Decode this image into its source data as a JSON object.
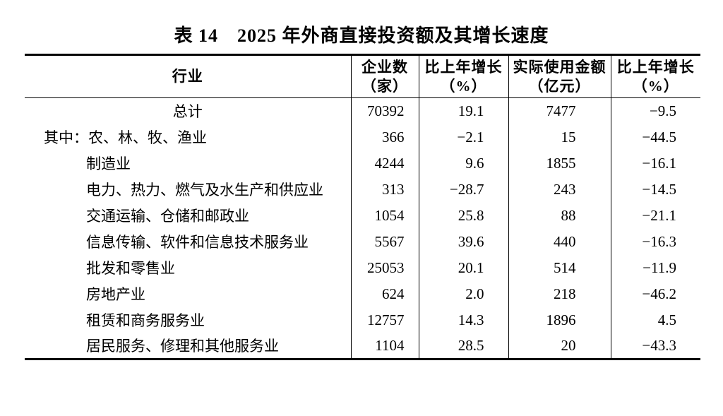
{
  "page": {
    "background": "#ffffff",
    "text_color": "#000000"
  },
  "title": "表 14　2025 年外商直接投资额及其增长速度",
  "table": {
    "columns": [
      {
        "label": "行业",
        "sub": ""
      },
      {
        "label": "企业数",
        "sub": "（家）"
      },
      {
        "label": "比上年增长",
        "sub": "（%）"
      },
      {
        "label": "实际使用金额",
        "sub": "（亿元）"
      },
      {
        "label": "比上年增长",
        "sub": "（%）"
      }
    ],
    "rows": [
      {
        "industry": "总计",
        "enterprises": "70392",
        "enterprises_growth": "19.1",
        "amount_used": "7477",
        "amount_growth": "−9.5"
      },
      {
        "industry": "其中：农、林、牧、渔业",
        "enterprises": "366",
        "enterprises_growth": "−2.1",
        "amount_used": "15",
        "amount_growth": "−44.5"
      },
      {
        "industry": "制造业",
        "enterprises": "4244",
        "enterprises_growth": "9.6",
        "amount_used": "1855",
        "amount_growth": "−16.1"
      },
      {
        "industry": "电力、热力、燃气及水生产和供应业",
        "enterprises": "313",
        "enterprises_growth": "−28.7",
        "amount_used": "243",
        "amount_growth": "−14.5"
      },
      {
        "industry": "交通运输、仓储和邮政业",
        "enterprises": "1054",
        "enterprises_growth": "25.8",
        "amount_used": "88",
        "amount_growth": "−21.1"
      },
      {
        "industry": "信息传输、软件和信息技术服务业",
        "enterprises": "5567",
        "enterprises_growth": "39.6",
        "amount_used": "440",
        "amount_growth": "−16.3"
      },
      {
        "industry": "批发和零售业",
        "enterprises": "25053",
        "enterprises_growth": "20.1",
        "amount_used": "514",
        "amount_growth": "−11.9"
      },
      {
        "industry": "房地产业",
        "enterprises": "624",
        "enterprises_growth": "2.0",
        "amount_used": "218",
        "amount_growth": "−46.2"
      },
      {
        "industry": "租赁和商务服务业",
        "enterprises": "12757",
        "enterprises_growth": "14.3",
        "amount_used": "1896",
        "amount_growth": "4.5"
      },
      {
        "industry": "居民服务、修理和其他服务业",
        "enterprises": "1104",
        "enterprises_growth": "28.5",
        "amount_used": "20",
        "amount_growth": "−43.3"
      }
    ]
  }
}
